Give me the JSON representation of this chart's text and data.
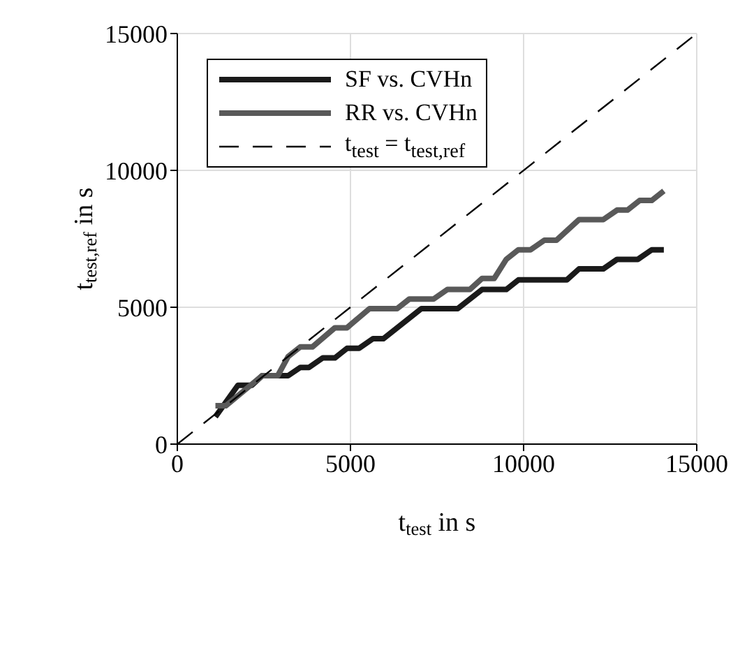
{
  "chart_data": {
    "type": "line",
    "xlabel": "t$_{test}$ in s",
    "ylabel": "t$_{test,ref}$ in s",
    "xlim": [
      0,
      15000
    ],
    "ylim": [
      0,
      15000
    ],
    "xticks": [
      0,
      5000,
      10000,
      15000
    ],
    "yticks": [
      0,
      5000,
      10000,
      15000
    ],
    "grid": true,
    "legend": "top left",
    "marker": "none",
    "series": [
      {
        "name": "SF vs. CVHn",
        "color": "#1a1a1a",
        "line_style": "solid",
        "x": [
          1100,
          1750,
          2150,
          2450,
          3200,
          3550,
          3800,
          4200,
          4550,
          4900,
          5250,
          5650,
          5950,
          7050,
          8100,
          8800,
          9500,
          9850,
          11250,
          11600,
          12300,
          12700,
          13300,
          13700,
          14050
        ],
        "values": [
          1000,
          2150,
          2150,
          2500,
          2500,
          2800,
          2800,
          3150,
          3150,
          3500,
          3500,
          3850,
          3850,
          4950,
          4950,
          5650,
          5650,
          6000,
          6000,
          6400,
          6400,
          6750,
          6750,
          7100,
          7100
        ]
      },
      {
        "name": "RR vs. CVHn",
        "color": "#595959",
        "line_style": "solid",
        "x": [
          1100,
          1400,
          2450,
          2900,
          3200,
          3550,
          3900,
          4550,
          4900,
          5550,
          6350,
          6700,
          7400,
          7800,
          8450,
          8800,
          9150,
          9500,
          9850,
          10200,
          10600,
          10950,
          11600,
          12300,
          12700,
          13000,
          13350,
          13700,
          14050
        ],
        "values": [
          1400,
          1400,
          2500,
          2500,
          3200,
          3550,
          3550,
          4250,
          4250,
          4950,
          4950,
          5300,
          5300,
          5650,
          5650,
          6050,
          6050,
          6750,
          7100,
          7100,
          7450,
          7450,
          8200,
          8200,
          8550,
          8550,
          8900,
          8900,
          9250
        ]
      },
      {
        "name": "t$_{test}$ = t$_{test,ref}$",
        "color": "#000000",
        "line_style": "dashed",
        "x": [
          0,
          15000
        ],
        "values": [
          0,
          15000
        ]
      }
    ]
  }
}
